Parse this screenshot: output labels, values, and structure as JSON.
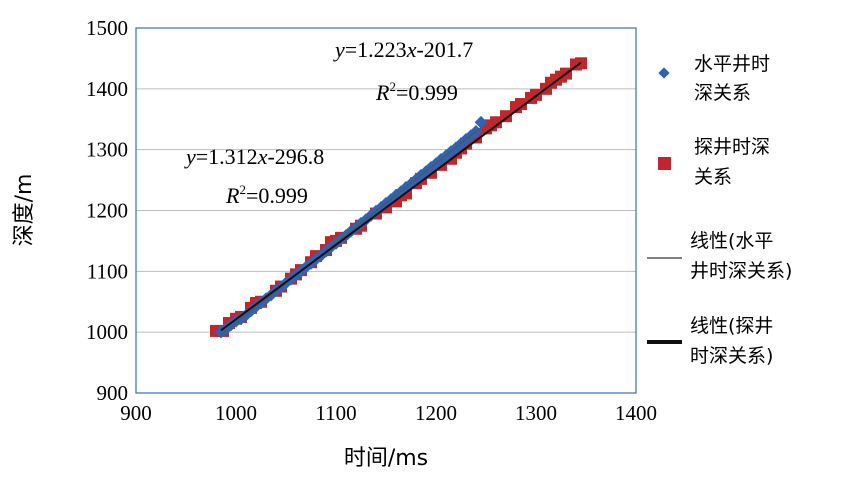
{
  "chart_data": {
    "type": "scatter",
    "xlabel": "时间/ms",
    "ylabel": "深度/m",
    "xlim": [
      900,
      1400
    ],
    "ylim": [
      900,
      1500
    ],
    "x_ticks": [
      "900",
      "1000",
      "1100",
      "1200",
      "1300",
      "1400"
    ],
    "y_ticks": [
      "900",
      "1000",
      "1100",
      "1200",
      "1300",
      "1400",
      "1500"
    ],
    "grid": "horizontal",
    "legend_position": "right",
    "series": [
      {
        "name_lines": [
          "水平井时",
          "深关系"
        ],
        "marker": "diamond",
        "color": "#2E64B4",
        "x": [
          985,
          990,
          995,
          1000,
          1005,
          1010,
          1015,
          1020,
          1025,
          1030,
          1035,
          1040,
          1045,
          1050,
          1055,
          1060,
          1065,
          1070,
          1075,
          1080,
          1085,
          1090,
          1095,
          1100,
          1105,
          1110,
          1115,
          1120,
          1125,
          1130,
          1135,
          1140,
          1145,
          1150,
          1155,
          1160,
          1165,
          1170,
          1175,
          1180,
          1185,
          1190,
          1195,
          1200,
          1205,
          1210,
          1215,
          1220,
          1225,
          1230,
          1235,
          1240,
          1245
        ],
        "y": [
          1000,
          1005,
          1012,
          1018,
          1022,
          1028,
          1035,
          1042,
          1048,
          1055,
          1061,
          1068,
          1074,
          1081,
          1087,
          1094,
          1100,
          1107,
          1113,
          1120,
          1126,
          1133,
          1140,
          1146,
          1153,
          1159,
          1166,
          1172,
          1179,
          1185,
          1192,
          1199,
          1205,
          1212,
          1218,
          1225,
          1231,
          1238,
          1244,
          1251,
          1258,
          1264,
          1271,
          1277,
          1284,
          1290,
          1297,
          1303,
          1310,
          1317,
          1323,
          1330,
          1345
        ]
      },
      {
        "name_lines": [
          "探井时深",
          "关系"
        ],
        "marker": "square",
        "color": "#C0272D",
        "x": [
          980,
          987,
          993,
          1000,
          1005,
          1015,
          1020,
          1025,
          1040,
          1045,
          1055,
          1060,
          1065,
          1075,
          1080,
          1090,
          1095,
          1100,
          1105,
          1120,
          1125,
          1140,
          1150,
          1160,
          1165,
          1170,
          1180,
          1185,
          1195,
          1205,
          1215,
          1220,
          1225,
          1230,
          1240,
          1250,
          1255,
          1260,
          1270,
          1280,
          1285,
          1295,
          1300,
          1310,
          1315,
          1320,
          1325,
          1330,
          1340,
          1345
        ],
        "y": [
          1002,
          1002,
          1015,
          1022,
          1025,
          1040,
          1048,
          1050,
          1068,
          1075,
          1088,
          1095,
          1102,
          1115,
          1125,
          1135,
          1148,
          1150,
          1155,
          1170,
          1175,
          1195,
          1205,
          1215,
          1225,
          1228,
          1245,
          1252,
          1262,
          1275,
          1285,
          1295,
          1302,
          1310,
          1320,
          1335,
          1340,
          1345,
          1355,
          1370,
          1375,
          1385,
          1390,
          1400,
          1410,
          1415,
          1420,
          1425,
          1440,
          1442
        ]
      }
    ],
    "trendlines": [
      {
        "name_lines": [
          "线性(水平",
          "井时深关系)"
        ],
        "color": "#555555",
        "slope": 1.312,
        "intercept": -296.8,
        "x_range": [
          985,
          1245
        ],
        "equation_lhs": "y",
        "equation_rhs": "=1.312",
        "equation_var": "x",
        "equation_tail": "-296.8",
        "r2_label": "R",
        "r2_sup": "2",
        "r2_value": "=0.999"
      },
      {
        "name_lines": [
          "线性(探井",
          "时深关系)"
        ],
        "color": "#111111",
        "slope": 1.223,
        "intercept": -201.7,
        "x_range": [
          985,
          1345
        ],
        "equation_lhs": "y",
        "equation_rhs": "=1.223",
        "equation_var": "x",
        "equation_tail": "-201.7",
        "r2_label": "R",
        "r2_sup": "2",
        "r2_value": "=0.999"
      }
    ]
  }
}
